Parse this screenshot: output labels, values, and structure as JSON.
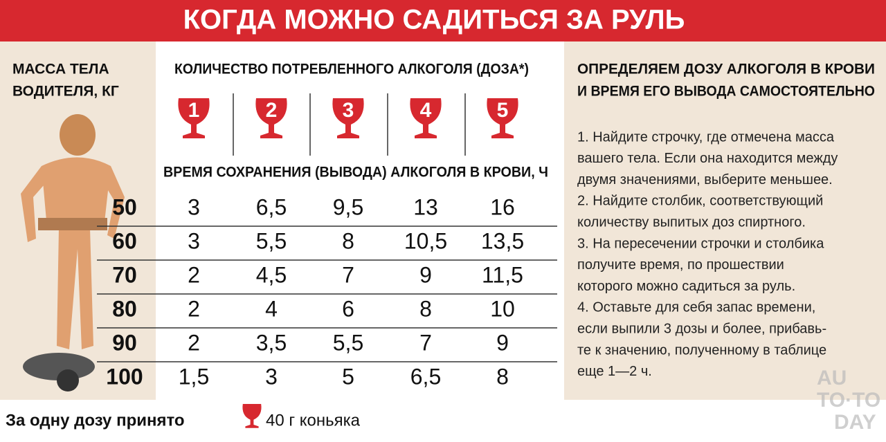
{
  "header": {
    "title": "КОГДА МОЖНО САДИТЬСЯ ЗА РУЛЬ"
  },
  "left": {
    "label_lines": [
      "МАССА ТЕЛА",
      "ВОДИТЕЛЯ, КГ"
    ]
  },
  "table": {
    "title": "КОЛИЧЕСТВО ПОТРЕБЛЕННОГО АЛКОГОЛЯ (ДОЗА*)",
    "doses": [
      "1",
      "2",
      "3",
      "4",
      "5"
    ],
    "subtitle": "ВРЕМЯ СОХРАНЕНИЯ (ВЫВОДА) АЛКОГОЛЯ В КРОВИ, Ч",
    "rows": [
      {
        "mass": "50",
        "values": [
          "3",
          "6,5",
          "9,5",
          "13",
          "16"
        ]
      },
      {
        "mass": "60",
        "values": [
          "3",
          "5,5",
          "8",
          "10,5",
          "13,5"
        ]
      },
      {
        "mass": "70",
        "values": [
          "2",
          "4,5",
          "7",
          "9",
          "11,5"
        ]
      },
      {
        "mass": "80",
        "values": [
          "2",
          "4",
          "6",
          "8",
          "10"
        ]
      },
      {
        "mass": "90",
        "values": [
          "2",
          "3,5",
          "5,5",
          "7",
          "9"
        ]
      },
      {
        "mass": "100",
        "values": [
          "1,5",
          "3",
          "5",
          "6,5",
          "8"
        ]
      }
    ]
  },
  "right": {
    "title_lines": [
      "ОПРЕДЕЛЯЕМ ДОЗУ АЛКОГОЛЯ В КРОВИ",
      "И ВРЕМЯ ЕГО ВЫВОДА САМОСТОЯТЕЛЬНО"
    ],
    "instruction_lines": [
      "1. Найдите строчку, где отмечена масса",
      "вашего тела. Если она находится между",
      "двумя значениями, выберите меньшее.",
      "2. Найдите столбик, соответствующий",
      "количеству выпитых доз спиртного.",
      "3. На пересечении строчки и столбика",
      "получите время, по прошествии",
      "которого можно садиться за руль.",
      "4. Оставьте для себя запас времени,",
      "если выпили 3 дозы и более, прибавь-",
      "те к значению, полученному в таблице",
      "еще 1—2 ч."
    ]
  },
  "footer": {
    "prefix": "За одну дозу принято",
    "suffix": "40 г коньяка"
  },
  "watermark": [
    "AU",
    "TO·TO",
    "DAY"
  ]
}
